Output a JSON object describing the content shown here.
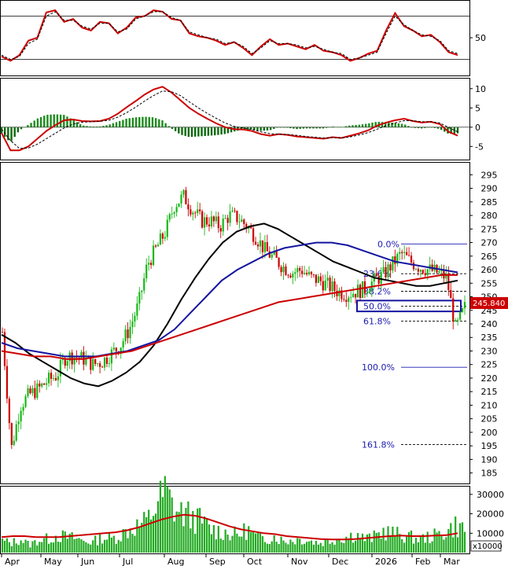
{
  "chart_data": [
    {
      "type": "line",
      "panel": "rsi",
      "yticks": [
        "50"
      ],
      "reference_levels": [
        80,
        20
      ],
      "ylim": [
        0,
        100
      ],
      "series": [
        {
          "values": [
            24,
            18,
            26,
            46,
            50,
            85,
            88,
            72,
            76,
            64,
            60,
            72,
            70,
            56,
            64,
            78,
            80,
            88,
            86,
            76,
            74,
            56,
            52,
            50,
            46,
            40,
            44,
            36,
            26,
            38,
            48,
            40,
            42,
            38,
            34,
            40,
            32,
            30,
            26,
            18,
            22,
            28,
            32,
            60,
            84,
            66,
            60,
            52,
            54,
            44,
            30,
            26
          ],
          "color": "#cc0000"
        },
        {
          "values": [
            26,
            20,
            24,
            42,
            48,
            80,
            86,
            74,
            74,
            66,
            62,
            70,
            70,
            58,
            62,
            76,
            80,
            86,
            86,
            78,
            74,
            58,
            54,
            50,
            48,
            42,
            44,
            38,
            28,
            36,
            46,
            42,
            42,
            40,
            36,
            38,
            34,
            30,
            28,
            20,
            22,
            26,
            30,
            56,
            80,
            68,
            60,
            54,
            52,
            46,
            32,
            28
          ],
          "color": "#000000",
          "style": "dashed"
        }
      ]
    },
    {
      "type": "line",
      "panel": "macd",
      "yticks": [
        "10",
        "5",
        "0",
        "-5"
      ],
      "ylim": [
        -8,
        12
      ],
      "series": [
        {
          "values": [
            -1.5,
            -6,
            -6,
            -5,
            -3,
            -1,
            0.5,
            1.8,
            2.0,
            1.6,
            1.5,
            1.6,
            2.2,
            3.5,
            5.2,
            6.8,
            8.5,
            9.8,
            10.5,
            9.0,
            7.0,
            5.0,
            3.5,
            2.2,
            1.0,
            0,
            -0.5,
            -0.6,
            -1,
            -1.8,
            -2.2,
            -1.8,
            -2.0,
            -2.4,
            -2.6,
            -2.8,
            -3.0,
            -2.6,
            -2.8,
            -2.2,
            -1.6,
            -0.8,
            0.4,
            1.2,
            1.8,
            2.2,
            1.6,
            1.2,
            1.4,
            0.8,
            -1.2,
            -2.2
          ],
          "color": "#cc0000"
        },
        {
          "values": [
            -0.5,
            -3.5,
            -5.5,
            -5.4,
            -4.4,
            -3.0,
            -1.6,
            -0.2,
            0.8,
            1.3,
            1.4,
            1.5,
            1.8,
            2.6,
            3.8,
            5.2,
            6.8,
            8.2,
            9.4,
            9.2,
            8.2,
            6.6,
            5.0,
            3.6,
            2.3,
            1.1,
            0.2,
            -0.2,
            -0.6,
            -1.2,
            -1.7,
            -1.8,
            -1.9,
            -2.1,
            -2.4,
            -2.6,
            -2.8,
            -2.7,
            -2.8,
            -2.5,
            -2.0,
            -1.4,
            -0.5,
            0.4,
            1.1,
            1.7,
            1.7,
            1.4,
            1.4,
            1.1,
            -0.1,
            -1.2
          ],
          "color": "#000000",
          "style": "dashed"
        }
      ]
    },
    {
      "type": "candlestick",
      "panel": "price",
      "x_ticks": [
        "Apr",
        "May",
        "Jun",
        "Jul",
        "Aug",
        "Sep",
        "Oct",
        "Nov",
        "Dec",
        "2026",
        "Feb",
        "Mar"
      ],
      "yticks": [
        "295",
        "290",
        "285",
        "280",
        "275",
        "270",
        "265",
        "260",
        "255",
        "250",
        "245",
        "240",
        "235",
        "230",
        "225",
        "220",
        "215",
        "210",
        "205",
        "200",
        "195",
        "190",
        "185"
      ],
      "ylim": [
        182,
        298
      ],
      "last_price": "245.840",
      "fibonacci": [
        {
          "label": "0.0%",
          "value": 269.5
        },
        {
          "label": "23.6%",
          "value": 258.5
        },
        {
          "label": "38.2%",
          "value": 252.0
        },
        {
          "label": "50.0%",
          "value": 246.5
        },
        {
          "label": "61.8%",
          "value": 241.0
        },
        {
          "label": "100.0%",
          "value": 224.0
        },
        {
          "label": "161.8%",
          "value": 195.5
        }
      ],
      "closes": [
        237,
        194,
        210,
        214,
        216,
        219,
        221,
        228,
        228,
        227,
        225,
        226,
        229,
        232,
        238,
        247,
        262,
        268,
        274,
        284,
        287,
        282,
        278,
        278,
        276,
        280,
        279,
        276,
        272,
        267,
        264,
        261,
        259,
        260,
        257,
        256,
        254,
        252,
        251,
        252,
        253,
        256,
        258,
        262,
        266,
        263,
        261,
        260,
        259,
        257,
        238,
        246
      ],
      "moving_averages": [
        {
          "values": [
            236,
            233,
            229,
            226,
            223,
            220,
            218,
            217,
            219,
            222,
            226,
            232,
            240,
            249,
            257,
            264,
            270,
            274,
            276,
            277,
            275,
            272,
            269,
            266,
            263,
            261,
            259,
            257,
            256,
            255,
            254,
            254,
            255,
            256
          ],
          "color": "#000000"
        },
        {
          "values": [
            233,
            231,
            230,
            229,
            228,
            228,
            228,
            229,
            230,
            232,
            234,
            238,
            244,
            250,
            256,
            260,
            263,
            266,
            268,
            269,
            270,
            270,
            269,
            267,
            265,
            263,
            262,
            261,
            260,
            259
          ],
          "color": "#1414a0"
        },
        {
          "values": [
            230,
            229,
            228,
            228,
            227,
            227,
            228,
            229,
            230,
            232,
            234,
            236,
            238,
            240,
            242,
            244,
            246,
            248,
            249,
            250,
            251,
            252,
            253,
            254,
            255,
            256,
            257,
            258,
            258
          ],
          "color": "#cc0000"
        }
      ]
    },
    {
      "type": "bar",
      "panel": "volume",
      "unit": "x10000",
      "yticks": [
        "30000",
        "20000",
        "10000"
      ],
      "ylim": [
        0,
        34000
      ],
      "values": [
        6000,
        5000,
        7000,
        4000,
        6500,
        7000,
        9000,
        8000,
        7500,
        6000,
        5500,
        8000,
        7000,
        9000,
        12000,
        14000,
        16000,
        25000,
        31000,
        22000,
        20000,
        18000,
        16000,
        12000,
        11000,
        10000,
        9000,
        12000,
        8000,
        7000,
        8500,
        6000,
        6500,
        7000,
        6000,
        5000,
        6000,
        7500,
        8000,
        9500,
        7000,
        8000,
        11000,
        10000,
        9000,
        8000,
        7000,
        8000,
        9000,
        11000,
        14000,
        12000
      ],
      "ma": {
        "values": [
          8000,
          8500,
          8500,
          8000,
          8000,
          8000,
          8500,
          9000,
          9500,
          10000,
          10500,
          11500,
          13000,
          15000,
          17000,
          18500,
          19500,
          19000,
          17500,
          15500,
          13500,
          12000,
          11000,
          10000,
          9500,
          8500,
          8000,
          7500,
          7000,
          6800,
          6800,
          7000,
          7500,
          8000,
          8500,
          8800,
          8500,
          8500,
          8800,
          9000,
          10000
        ],
        "color": "#cc0000"
      }
    }
  ],
  "colors": {
    "up_candle": "#18b818",
    "down_candle": "#cc0000",
    "volume_bar": "#22aa22",
    "macd_hist_pos": "#1c8c1c",
    "macd_hist_neg": "#0c6a0c",
    "fib_line": "#1a1ab0",
    "price_label_bg": "#cc0000",
    "fib_box": "#1414a0"
  }
}
